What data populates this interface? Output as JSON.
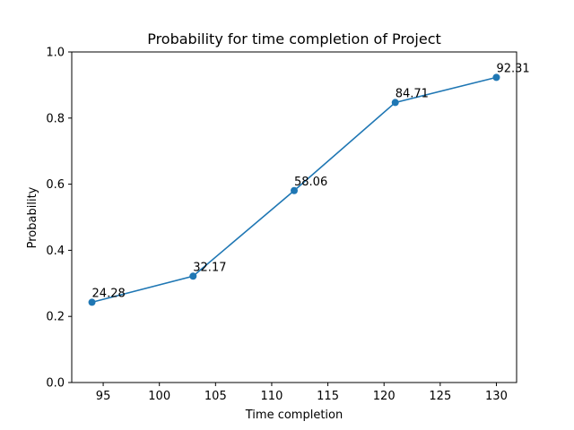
{
  "chart_data": {
    "type": "line",
    "title": "Probability for time completion of Project",
    "xlabel": "Time completion",
    "ylabel": "Probability",
    "x": [
      94,
      103,
      112,
      121,
      130
    ],
    "series": [
      {
        "values": [
          0.2428,
          0.3217,
          0.5806,
          0.8471,
          0.9231
        ],
        "labels": [
          "24.28",
          "32.17",
          "58.06",
          "84.71",
          "92.31"
        ],
        "color": "#1f77b4",
        "marker": "circle"
      }
    ],
    "xlim": [
      92.2,
      131.8
    ],
    "ylim": [
      0.0,
      1.0
    ],
    "xticks": [
      95,
      100,
      105,
      110,
      115,
      120,
      125,
      130
    ],
    "xtick_labels": [
      "95",
      "100",
      "105",
      "110",
      "115",
      "120",
      "125",
      "130"
    ],
    "yticks": [
      0.0,
      0.2,
      0.4,
      0.6,
      0.8,
      1.0
    ],
    "ytick_labels": [
      "0.0",
      "0.2",
      "0.4",
      "0.6",
      "0.8",
      "1.0"
    ],
    "grid": false,
    "legend": false
  }
}
